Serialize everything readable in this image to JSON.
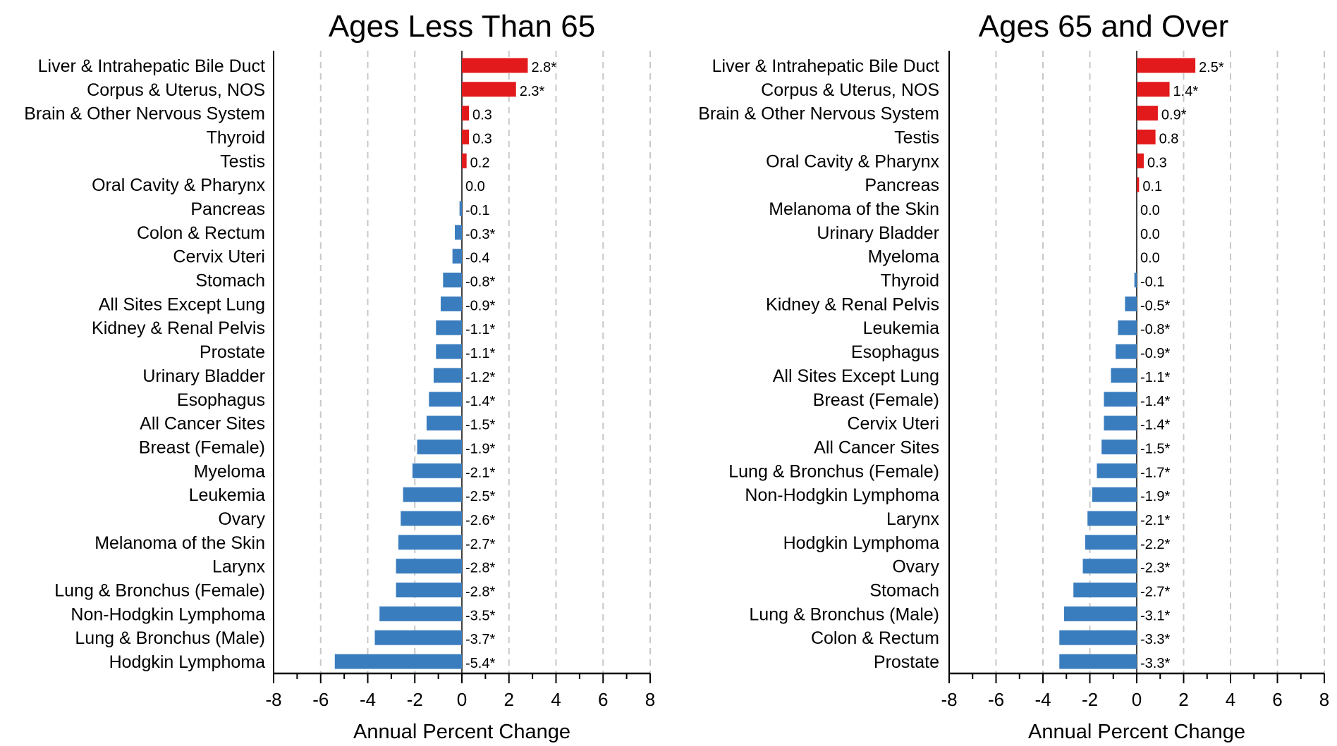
{
  "colors": {
    "positive": "#e31a1c",
    "negative": "#3a7dbf",
    "grid": "#c8c8c8"
  },
  "chart_data": [
    {
      "type": "bar",
      "orientation": "horizontal",
      "title": "Ages Less Than 65",
      "xlabel": "Annual Percent Change",
      "ylabel": "",
      "xlim": [
        -8,
        8
      ],
      "ticks": [
        -8,
        -6,
        -4,
        -2,
        0,
        2,
        4,
        6,
        8
      ],
      "grid": "vertical dashed at major ticks",
      "categories": [
        "Liver & Intrahepatic Bile Duct",
        "Corpus & Uterus, NOS",
        "Brain & Other Nervous System",
        "Thyroid",
        "Testis",
        "Oral Cavity & Pharynx",
        "Pancreas",
        "Colon & Rectum",
        "Cervix Uteri",
        "Stomach",
        "All Sites Except Lung",
        "Kidney & Renal Pelvis",
        "Prostate",
        "Urinary Bladder",
        "Esophagus",
        "All Cancer Sites",
        "Breast (Female)",
        "Myeloma",
        "Leukemia",
        "Ovary",
        "Melanoma of the Skin",
        "Larynx",
        "Lung & Bronchus (Female)",
        "Non-Hodgkin Lymphoma",
        "Lung & Bronchus (Male)",
        "Hodgkin Lymphoma"
      ],
      "values": [
        2.8,
        2.3,
        0.3,
        0.3,
        0.2,
        0.0,
        -0.1,
        -0.3,
        -0.4,
        -0.8,
        -0.9,
        -1.1,
        -1.1,
        -1.2,
        -1.4,
        -1.5,
        -1.9,
        -2.1,
        -2.5,
        -2.6,
        -2.7,
        -2.8,
        -2.8,
        -3.5,
        -3.7,
        -5.4
      ],
      "labels": [
        "2.8*",
        "2.3*",
        "0.3",
        "0.3",
        "0.2",
        "0.0",
        "-0.1",
        "-0.3*",
        "-0.4",
        "-0.8*",
        "-0.9*",
        "-1.1*",
        "-1.1*",
        "-1.2*",
        "-1.4*",
        "-1.5*",
        "-1.9*",
        "-2.1*",
        "-2.5*",
        "-2.6*",
        "-2.7*",
        "-2.8*",
        "-2.8*",
        "-3.5*",
        "-3.7*",
        "-5.4*"
      ]
    },
    {
      "type": "bar",
      "orientation": "horizontal",
      "title": "Ages 65 and Over",
      "xlabel": "Annual Percent Change",
      "ylabel": "",
      "xlim": [
        -8,
        8
      ],
      "ticks": [
        -8,
        -6,
        -4,
        -2,
        0,
        2,
        4,
        6,
        8
      ],
      "grid": "vertical dashed at major ticks",
      "categories": [
        "Liver & Intrahepatic Bile Duct",
        "Corpus & Uterus, NOS",
        "Brain & Other Nervous System",
        "Testis",
        "Oral Cavity & Pharynx",
        "Pancreas",
        "Melanoma of the Skin",
        "Urinary Bladder",
        "Myeloma",
        "Thyroid",
        "Kidney & Renal Pelvis",
        "Leukemia",
        "Esophagus",
        "All Sites Except Lung",
        "Breast (Female)",
        "Cervix Uteri",
        "All Cancer Sites",
        "Lung & Bronchus (Female)",
        "Non-Hodgkin Lymphoma",
        "Larynx",
        "Hodgkin Lymphoma",
        "Ovary",
        "Stomach",
        "Lung & Bronchus (Male)",
        "Colon & Rectum",
        "Prostate"
      ],
      "values": [
        2.5,
        1.4,
        0.9,
        0.8,
        0.3,
        0.1,
        0.0,
        0.0,
        0.0,
        -0.1,
        -0.5,
        -0.8,
        -0.9,
        -1.1,
        -1.4,
        -1.4,
        -1.5,
        -1.7,
        -1.9,
        -2.1,
        -2.2,
        -2.3,
        -2.7,
        -3.1,
        -3.3,
        -3.3
      ],
      "labels": [
        "2.5*",
        "1.4*",
        "0.9*",
        "0.8",
        "0.3",
        "0.1",
        "0.0",
        "0.0",
        "0.0",
        "-0.1",
        "-0.5*",
        "-0.8*",
        "-0.9*",
        "-1.1*",
        "-1.4*",
        "-1.4*",
        "-1.5*",
        "-1.7*",
        "-1.9*",
        "-2.1*",
        "-2.2*",
        "-2.3*",
        "-2.7*",
        "-3.1*",
        "-3.3*",
        "-3.3*"
      ]
    }
  ]
}
